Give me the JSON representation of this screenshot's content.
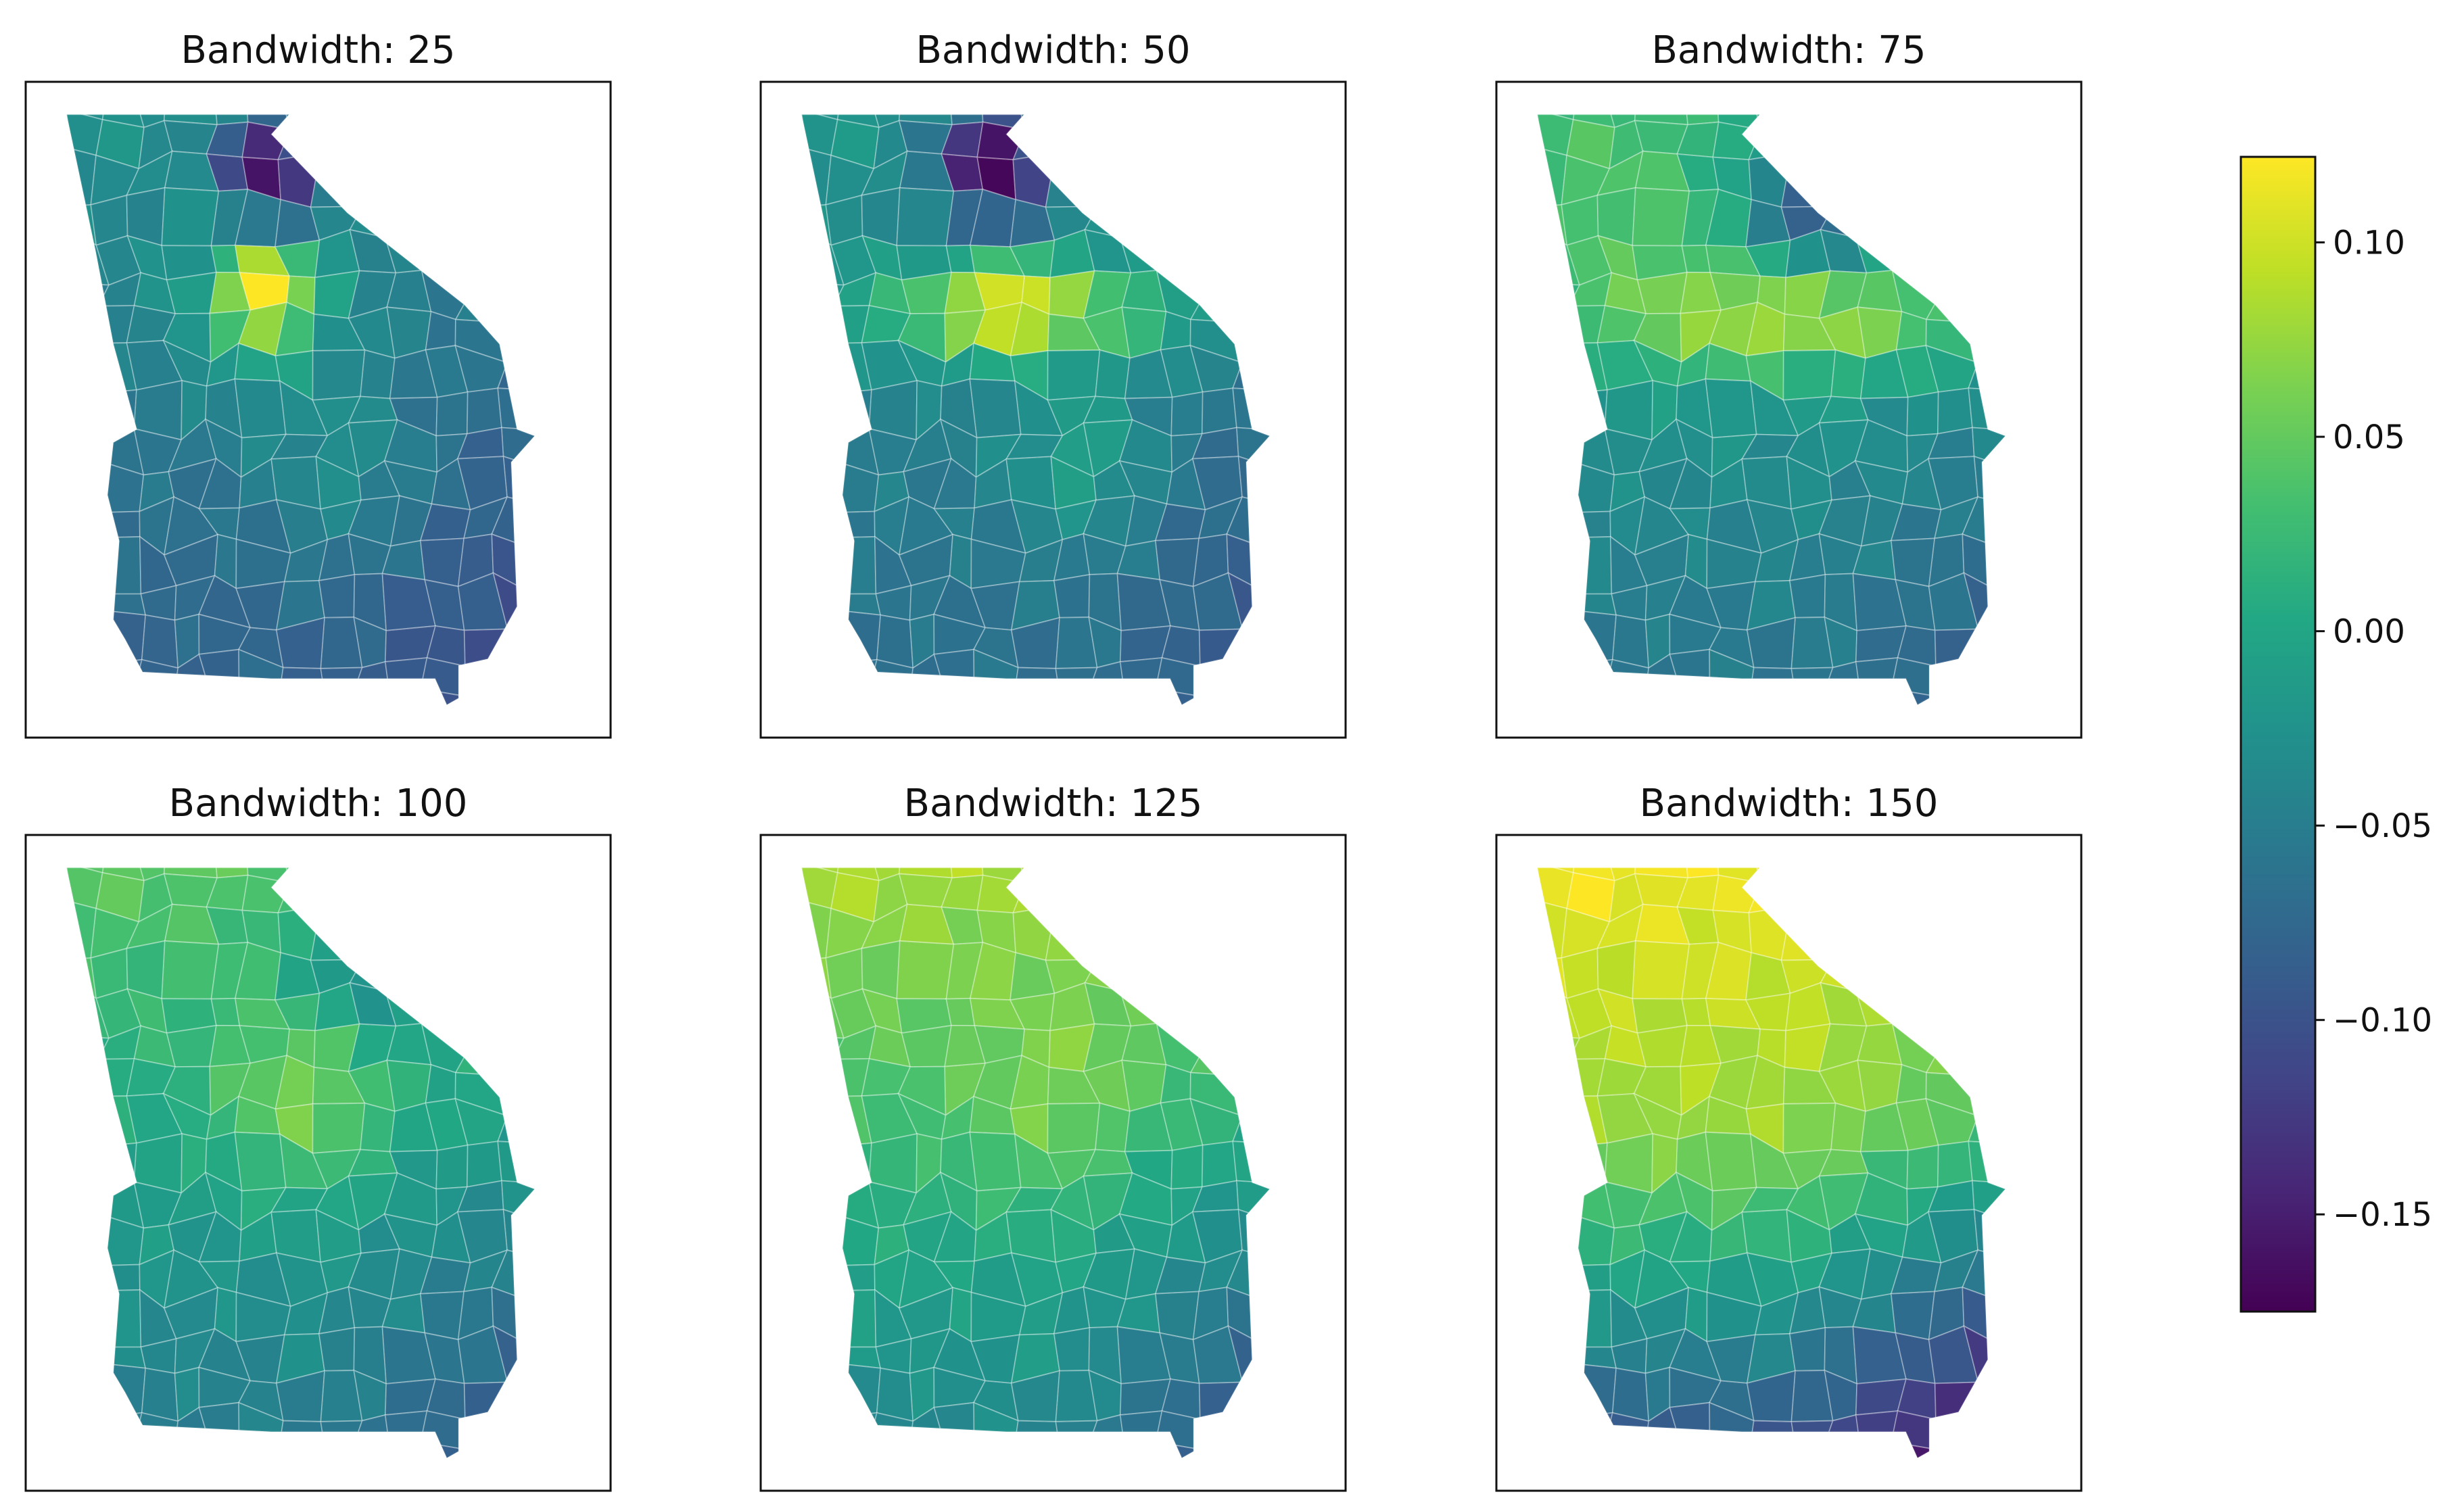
{
  "chart_data": {
    "type": "heatmap",
    "subtype": "choropleth-small-multiples",
    "colormap": "viridis",
    "panels": [
      {
        "title": "Bandwidth: 25",
        "bandwidth": 25
      },
      {
        "title": "Bandwidth: 50",
        "bandwidth": 50
      },
      {
        "title": "Bandwidth: 75",
        "bandwidth": 75
      },
      {
        "title": "Bandwidth: 100",
        "bandwidth": 100
      },
      {
        "title": "Bandwidth: 125",
        "bandwidth": 125
      },
      {
        "title": "Bandwidth: 150",
        "bandwidth": 150
      }
    ],
    "colorbar": {
      "range": [
        -0.175,
        0.122
      ],
      "ticks": [
        0.1,
        0.05,
        0.0,
        -0.05,
        -0.1,
        -0.15
      ],
      "tick_labels": [
        "0.10",
        "0.05",
        "0.00",
        "−0.05",
        "−0.10",
        "−0.15"
      ]
    },
    "grid": false,
    "colors": {
      "viridis_low": "#440154",
      "viridis_mid": "#21918c",
      "viridis_high": "#fde725"
    }
  }
}
